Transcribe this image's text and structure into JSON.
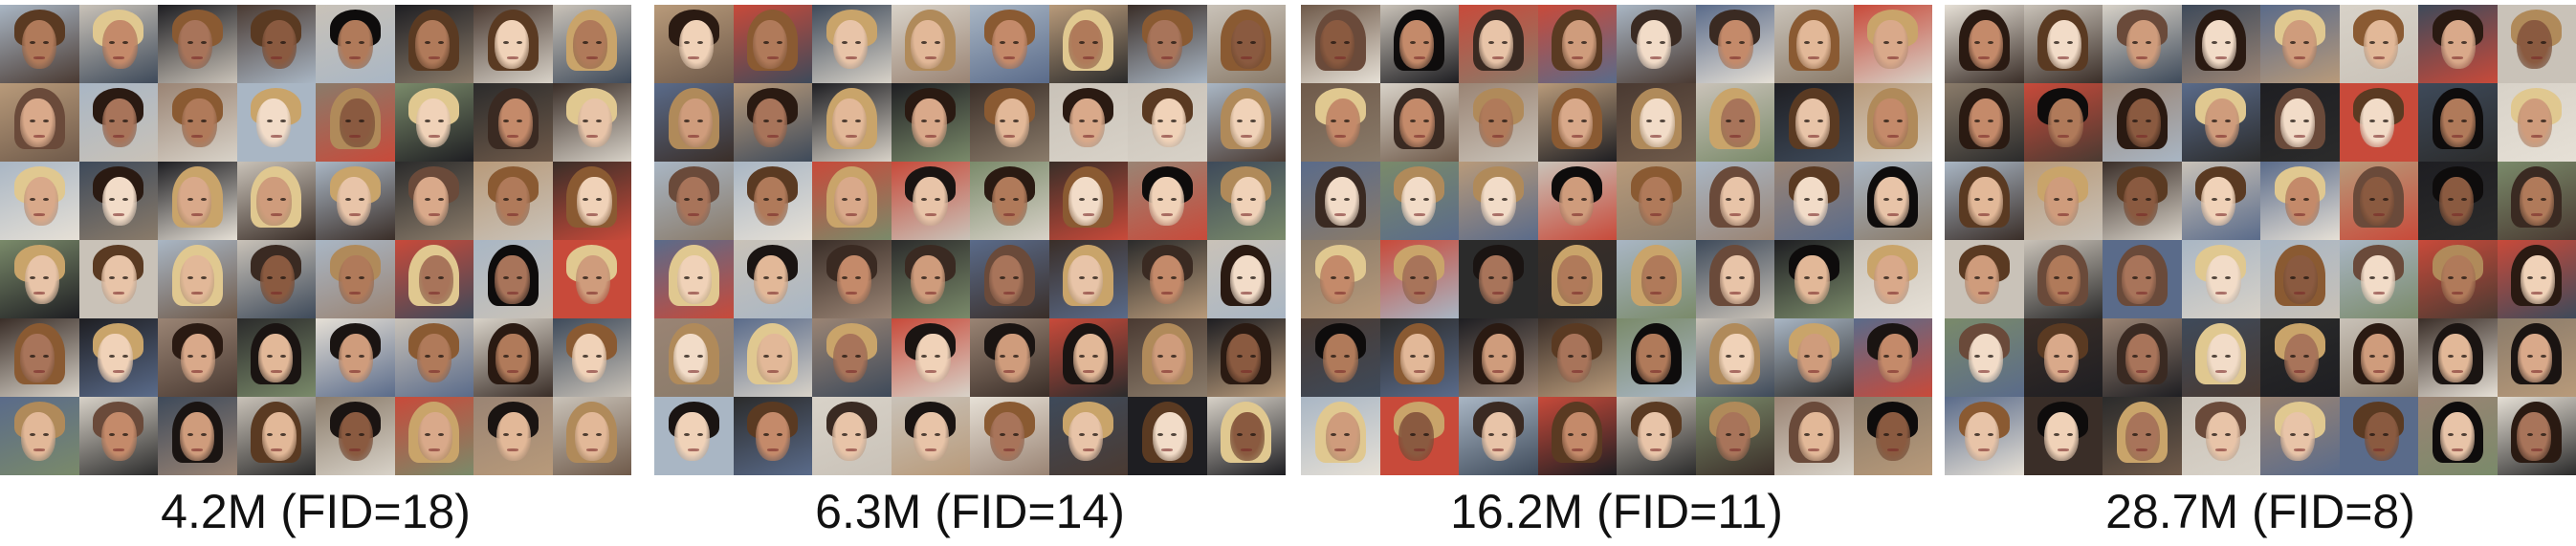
{
  "figure": {
    "panels": [
      {
        "caption": "4.2M (FID=18)"
      },
      {
        "caption": "6.3M (FID=14)"
      },
      {
        "caption": "16.2M (FID=11)"
      },
      {
        "caption": "28.7M (FID=8)"
      }
    ],
    "grid": {
      "rows": 6,
      "cols": 8
    }
  }
}
